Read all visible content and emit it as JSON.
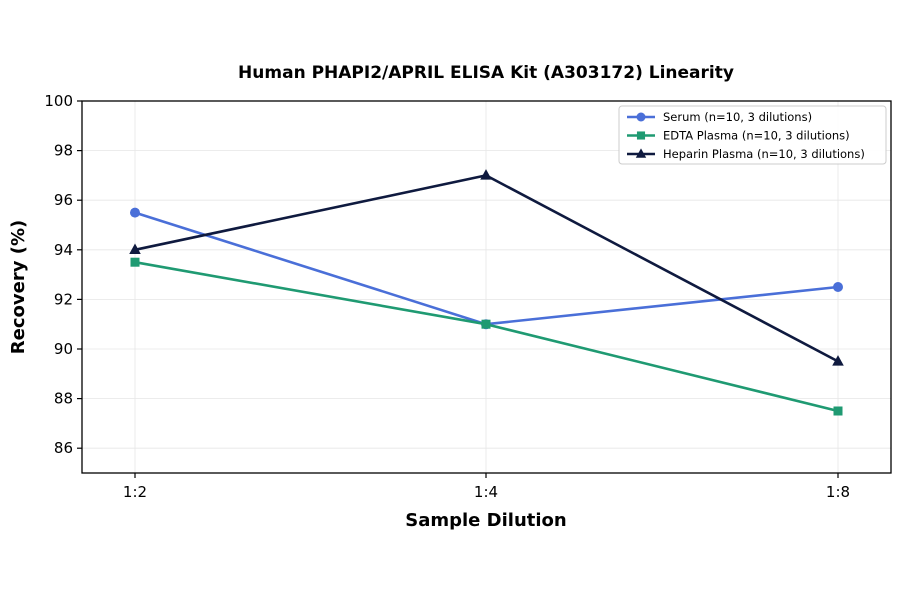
{
  "chart_data": {
    "type": "line",
    "title": "Human PHAPI2/APRIL ELISA Kit (A303172) Linearity",
    "xlabel": "Sample Dilution",
    "ylabel": "Recovery (%)",
    "categories": [
      "1:2",
      "1:4",
      "1:8"
    ],
    "ylim": [
      85,
      100
    ],
    "yticks": [
      86,
      88,
      90,
      92,
      94,
      96,
      98,
      100
    ],
    "grid": true,
    "legend_position": "top-right",
    "series": [
      {
        "name": "Serum (n=10, 3 dilutions)",
        "values": [
          95.5,
          91.0,
          92.5
        ],
        "color": "#4a6fd8",
        "marker": "circle"
      },
      {
        "name": "EDTA Plasma (n=10, 3 dilutions)",
        "values": [
          93.5,
          91.0,
          87.5
        ],
        "color": "#1f9a72",
        "marker": "square"
      },
      {
        "name": "Heparin Plasma (n=10, 3 dilutions)",
        "values": [
          94.0,
          97.0,
          89.5
        ],
        "color": "#0f1a3f",
        "marker": "triangle"
      }
    ]
  }
}
